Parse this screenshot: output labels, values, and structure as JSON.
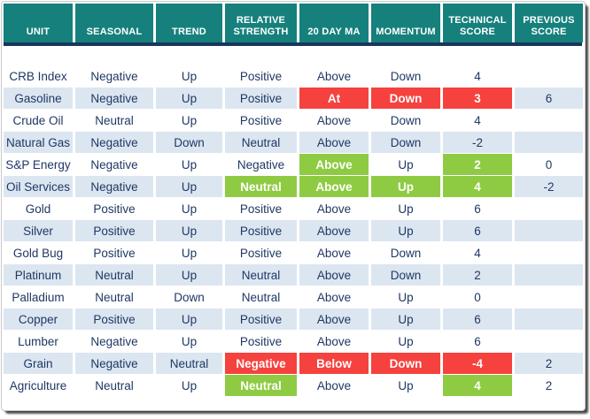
{
  "colors": {
    "teal": "#16807C",
    "navy": "#17375E",
    "altrow": "#DCE6F1",
    "red": "#F5423E",
    "green": "#8ECB43",
    "text": "#1F3864"
  },
  "chart_data": {
    "type": "table",
    "title": "Commodity technical score table",
    "columns": [
      {
        "key": "unit",
        "label": "UNIT"
      },
      {
        "key": "seasonal",
        "label": "SEASONAL"
      },
      {
        "key": "trend",
        "label": "TREND"
      },
      {
        "key": "relative-strength",
        "label": "RELATIVE STRENGTH"
      },
      {
        "key": "20-day-ma",
        "label": "20 DAY MA"
      },
      {
        "key": "momentum",
        "label": "MOMENTUM"
      },
      {
        "key": "technical-score",
        "label": "TECHNICAL SCORE"
      },
      {
        "key": "previous-score",
        "label": "PREVIOUS SCORE"
      }
    ],
    "rows": [
      {
        "cells": [
          {
            "text": "CRB Index",
            "status": "none"
          },
          {
            "text": "Negative",
            "status": "none"
          },
          {
            "text": "Up",
            "status": "none"
          },
          {
            "text": "Positive",
            "status": "none"
          },
          {
            "text": "Above",
            "status": "none"
          },
          {
            "text": "Down",
            "status": "none"
          },
          {
            "text": "4",
            "status": "none"
          },
          {
            "text": "",
            "status": "none"
          }
        ]
      },
      {
        "cells": [
          {
            "text": "Gasoline",
            "status": "none"
          },
          {
            "text": "Negative",
            "status": "none"
          },
          {
            "text": "Up",
            "status": "none"
          },
          {
            "text": "Positive",
            "status": "none"
          },
          {
            "text": "At",
            "status": "red"
          },
          {
            "text": "Down",
            "status": "red"
          },
          {
            "text": "3",
            "status": "red"
          },
          {
            "text": "6",
            "status": "none"
          }
        ]
      },
      {
        "cells": [
          {
            "text": "Crude Oil",
            "status": "none"
          },
          {
            "text": "Neutral",
            "status": "none"
          },
          {
            "text": "Up",
            "status": "none"
          },
          {
            "text": "Positive",
            "status": "none"
          },
          {
            "text": "Above",
            "status": "none"
          },
          {
            "text": "Down",
            "status": "none"
          },
          {
            "text": "4",
            "status": "none"
          },
          {
            "text": "",
            "status": "none"
          }
        ]
      },
      {
        "cells": [
          {
            "text": "Natural Gas",
            "status": "none"
          },
          {
            "text": "Negative",
            "status": "none"
          },
          {
            "text": "Down",
            "status": "none"
          },
          {
            "text": "Neutral",
            "status": "none"
          },
          {
            "text": "Above",
            "status": "none"
          },
          {
            "text": "Down",
            "status": "none"
          },
          {
            "text": "-2",
            "status": "none"
          },
          {
            "text": "",
            "status": "none"
          }
        ]
      },
      {
        "cells": [
          {
            "text": "S&P Energy",
            "status": "none"
          },
          {
            "text": "Negative",
            "status": "none"
          },
          {
            "text": "Up",
            "status": "none"
          },
          {
            "text": "Negative",
            "status": "none"
          },
          {
            "text": "Above",
            "status": "green"
          },
          {
            "text": "Up",
            "status": "none"
          },
          {
            "text": "2",
            "status": "green"
          },
          {
            "text": "0",
            "status": "none"
          }
        ]
      },
      {
        "cells": [
          {
            "text": "Oil Services",
            "status": "none"
          },
          {
            "text": "Negative",
            "status": "none"
          },
          {
            "text": "Up",
            "status": "none"
          },
          {
            "text": "Neutral",
            "status": "green"
          },
          {
            "text": "Above",
            "status": "green"
          },
          {
            "text": "Up",
            "status": "green"
          },
          {
            "text": "4",
            "status": "green"
          },
          {
            "text": "-2",
            "status": "none"
          }
        ]
      },
      {
        "cells": [
          {
            "text": "Gold",
            "status": "none"
          },
          {
            "text": "Positive",
            "status": "none"
          },
          {
            "text": "Up",
            "status": "none"
          },
          {
            "text": "Positive",
            "status": "none"
          },
          {
            "text": "Above",
            "status": "none"
          },
          {
            "text": "Up",
            "status": "none"
          },
          {
            "text": "6",
            "status": "none"
          },
          {
            "text": "",
            "status": "none"
          }
        ]
      },
      {
        "cells": [
          {
            "text": "Silver",
            "status": "none"
          },
          {
            "text": "Positive",
            "status": "none"
          },
          {
            "text": "Up",
            "status": "none"
          },
          {
            "text": "Positive",
            "status": "none"
          },
          {
            "text": "Above",
            "status": "none"
          },
          {
            "text": "Up",
            "status": "none"
          },
          {
            "text": "6",
            "status": "none"
          },
          {
            "text": "",
            "status": "none"
          }
        ]
      },
      {
        "cells": [
          {
            "text": "Gold Bug",
            "status": "none"
          },
          {
            "text": "Positive",
            "status": "none"
          },
          {
            "text": "Up",
            "status": "none"
          },
          {
            "text": "Positive",
            "status": "none"
          },
          {
            "text": "Above",
            "status": "none"
          },
          {
            "text": "Down",
            "status": "none"
          },
          {
            "text": "4",
            "status": "none"
          },
          {
            "text": "",
            "status": "none"
          }
        ]
      },
      {
        "cells": [
          {
            "text": "Platinum",
            "status": "none"
          },
          {
            "text": "Neutral",
            "status": "none"
          },
          {
            "text": "Up",
            "status": "none"
          },
          {
            "text": "Neutral",
            "status": "none"
          },
          {
            "text": "Above",
            "status": "none"
          },
          {
            "text": "Down",
            "status": "none"
          },
          {
            "text": "2",
            "status": "none"
          },
          {
            "text": "",
            "status": "none"
          }
        ]
      },
      {
        "cells": [
          {
            "text": "Palladium",
            "status": "none"
          },
          {
            "text": "Neutral",
            "status": "none"
          },
          {
            "text": "Down",
            "status": "none"
          },
          {
            "text": "Neutral",
            "status": "none"
          },
          {
            "text": "Above",
            "status": "none"
          },
          {
            "text": "Up",
            "status": "none"
          },
          {
            "text": "0",
            "status": "none"
          },
          {
            "text": "",
            "status": "none"
          }
        ]
      },
      {
        "cells": [
          {
            "text": "Copper",
            "status": "none"
          },
          {
            "text": "Positive",
            "status": "none"
          },
          {
            "text": "Up",
            "status": "none"
          },
          {
            "text": "Positive",
            "status": "none"
          },
          {
            "text": "Above",
            "status": "none"
          },
          {
            "text": "Up",
            "status": "none"
          },
          {
            "text": "6",
            "status": "none"
          },
          {
            "text": "",
            "status": "none"
          }
        ]
      },
      {
        "cells": [
          {
            "text": "Lumber",
            "status": "none"
          },
          {
            "text": "Negative",
            "status": "none"
          },
          {
            "text": "Up",
            "status": "none"
          },
          {
            "text": "Positive",
            "status": "none"
          },
          {
            "text": "Above",
            "status": "none"
          },
          {
            "text": "Up",
            "status": "none"
          },
          {
            "text": "6",
            "status": "none"
          },
          {
            "text": "",
            "status": "none"
          }
        ]
      },
      {
        "cells": [
          {
            "text": "Grain",
            "status": "none"
          },
          {
            "text": "Negative",
            "status": "none"
          },
          {
            "text": "Neutral",
            "status": "none"
          },
          {
            "text": "Negative",
            "status": "red"
          },
          {
            "text": "Below",
            "status": "red"
          },
          {
            "text": "Down",
            "status": "red"
          },
          {
            "text": "-4",
            "status": "red"
          },
          {
            "text": "2",
            "status": "none"
          }
        ]
      },
      {
        "cells": [
          {
            "text": "Agriculture",
            "status": "none"
          },
          {
            "text": "Neutral",
            "status": "none"
          },
          {
            "text": "Up",
            "status": "none"
          },
          {
            "text": "Neutral",
            "status": "green"
          },
          {
            "text": "Above",
            "status": "none"
          },
          {
            "text": "Up",
            "status": "none"
          },
          {
            "text": "4",
            "status": "green"
          },
          {
            "text": "2",
            "status": "none"
          }
        ]
      }
    ]
  }
}
